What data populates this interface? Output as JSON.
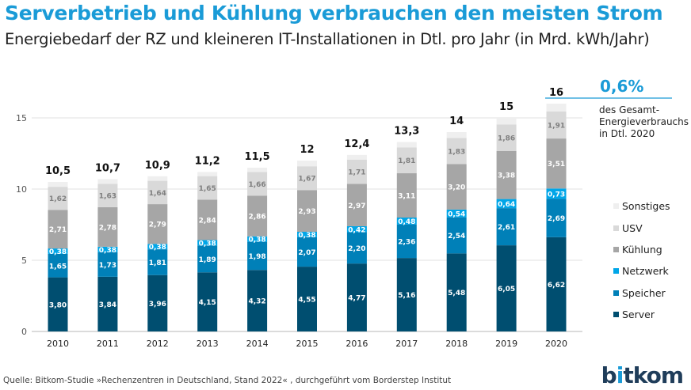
{
  "title": "Serverbetrieb und Kühlung verbrauchen den meisten Strom",
  "subtitle": "Energiebedarf der RZ und kleineren IT-Installationen in Dtl. pro Jahr (in Mrd. kWh/Jahr)",
  "annotation": {
    "value": "0,6%",
    "text": "des Gesamt-Energieverbrauchs in Dtl. 2020"
  },
  "source": "Quelle: Bitkom-Studie »Rechenzentren in Deutschland, Stand 2022« , durchgeführt vom Borderstep Institut",
  "logo": "bitkom",
  "chart_data": {
    "type": "bar",
    "stacked": true,
    "categories": [
      "2010",
      "2011",
      "2012",
      "2013",
      "2014",
      "2015",
      "2016",
      "2017",
      "2018",
      "2019",
      "2020"
    ],
    "yticks": [
      0,
      5,
      10,
      15
    ],
    "ylim": [
      0,
      16.5
    ],
    "grid": true,
    "legend_position": "right",
    "totals": [
      "10,5",
      "10,7",
      "10,9",
      "11,2",
      "11,5",
      "12",
      "12,4",
      "13,3",
      "14",
      "15",
      "16"
    ],
    "series": [
      {
        "name": "Server",
        "color": "#004e70",
        "label_color": "#ffffff",
        "values": [
          3.8,
          3.84,
          3.96,
          4.15,
          4.32,
          4.55,
          4.77,
          5.16,
          5.48,
          6.05,
          6.62
        ]
      },
      {
        "name": "Speicher",
        "color": "#0080b8",
        "label_color": "#ffffff",
        "values": [
          1.65,
          1.73,
          1.81,
          1.89,
          1.98,
          2.07,
          2.2,
          2.36,
          2.54,
          2.61,
          2.69
        ]
      },
      {
        "name": "Netzwerk",
        "color": "#00a6e8",
        "label_color": "#ffffff",
        "values": [
          0.38,
          0.38,
          0.38,
          0.38,
          0.38,
          0.38,
          0.42,
          0.48,
          0.54,
          0.64,
          0.73
        ]
      },
      {
        "name": "Kühlung",
        "color": "#a6a6a6",
        "label_color": "#ffffff",
        "values": [
          2.71,
          2.78,
          2.79,
          2.84,
          2.86,
          2.93,
          2.97,
          3.11,
          3.2,
          3.38,
          3.51
        ]
      },
      {
        "name": "USV",
        "color": "#d9d9d9",
        "label_color": "#7f7f7f",
        "values": [
          1.62,
          1.63,
          1.64,
          1.65,
          1.66,
          1.67,
          1.71,
          1.81,
          1.83,
          1.86,
          1.91
        ]
      },
      {
        "name": "Sonstiges",
        "color": "#efefef",
        "label_color": null,
        "values": [
          0.34,
          0.34,
          0.32,
          0.29,
          0.3,
          0.4,
          0.33,
          0.38,
          0.41,
          0.46,
          0.54
        ]
      }
    ]
  }
}
